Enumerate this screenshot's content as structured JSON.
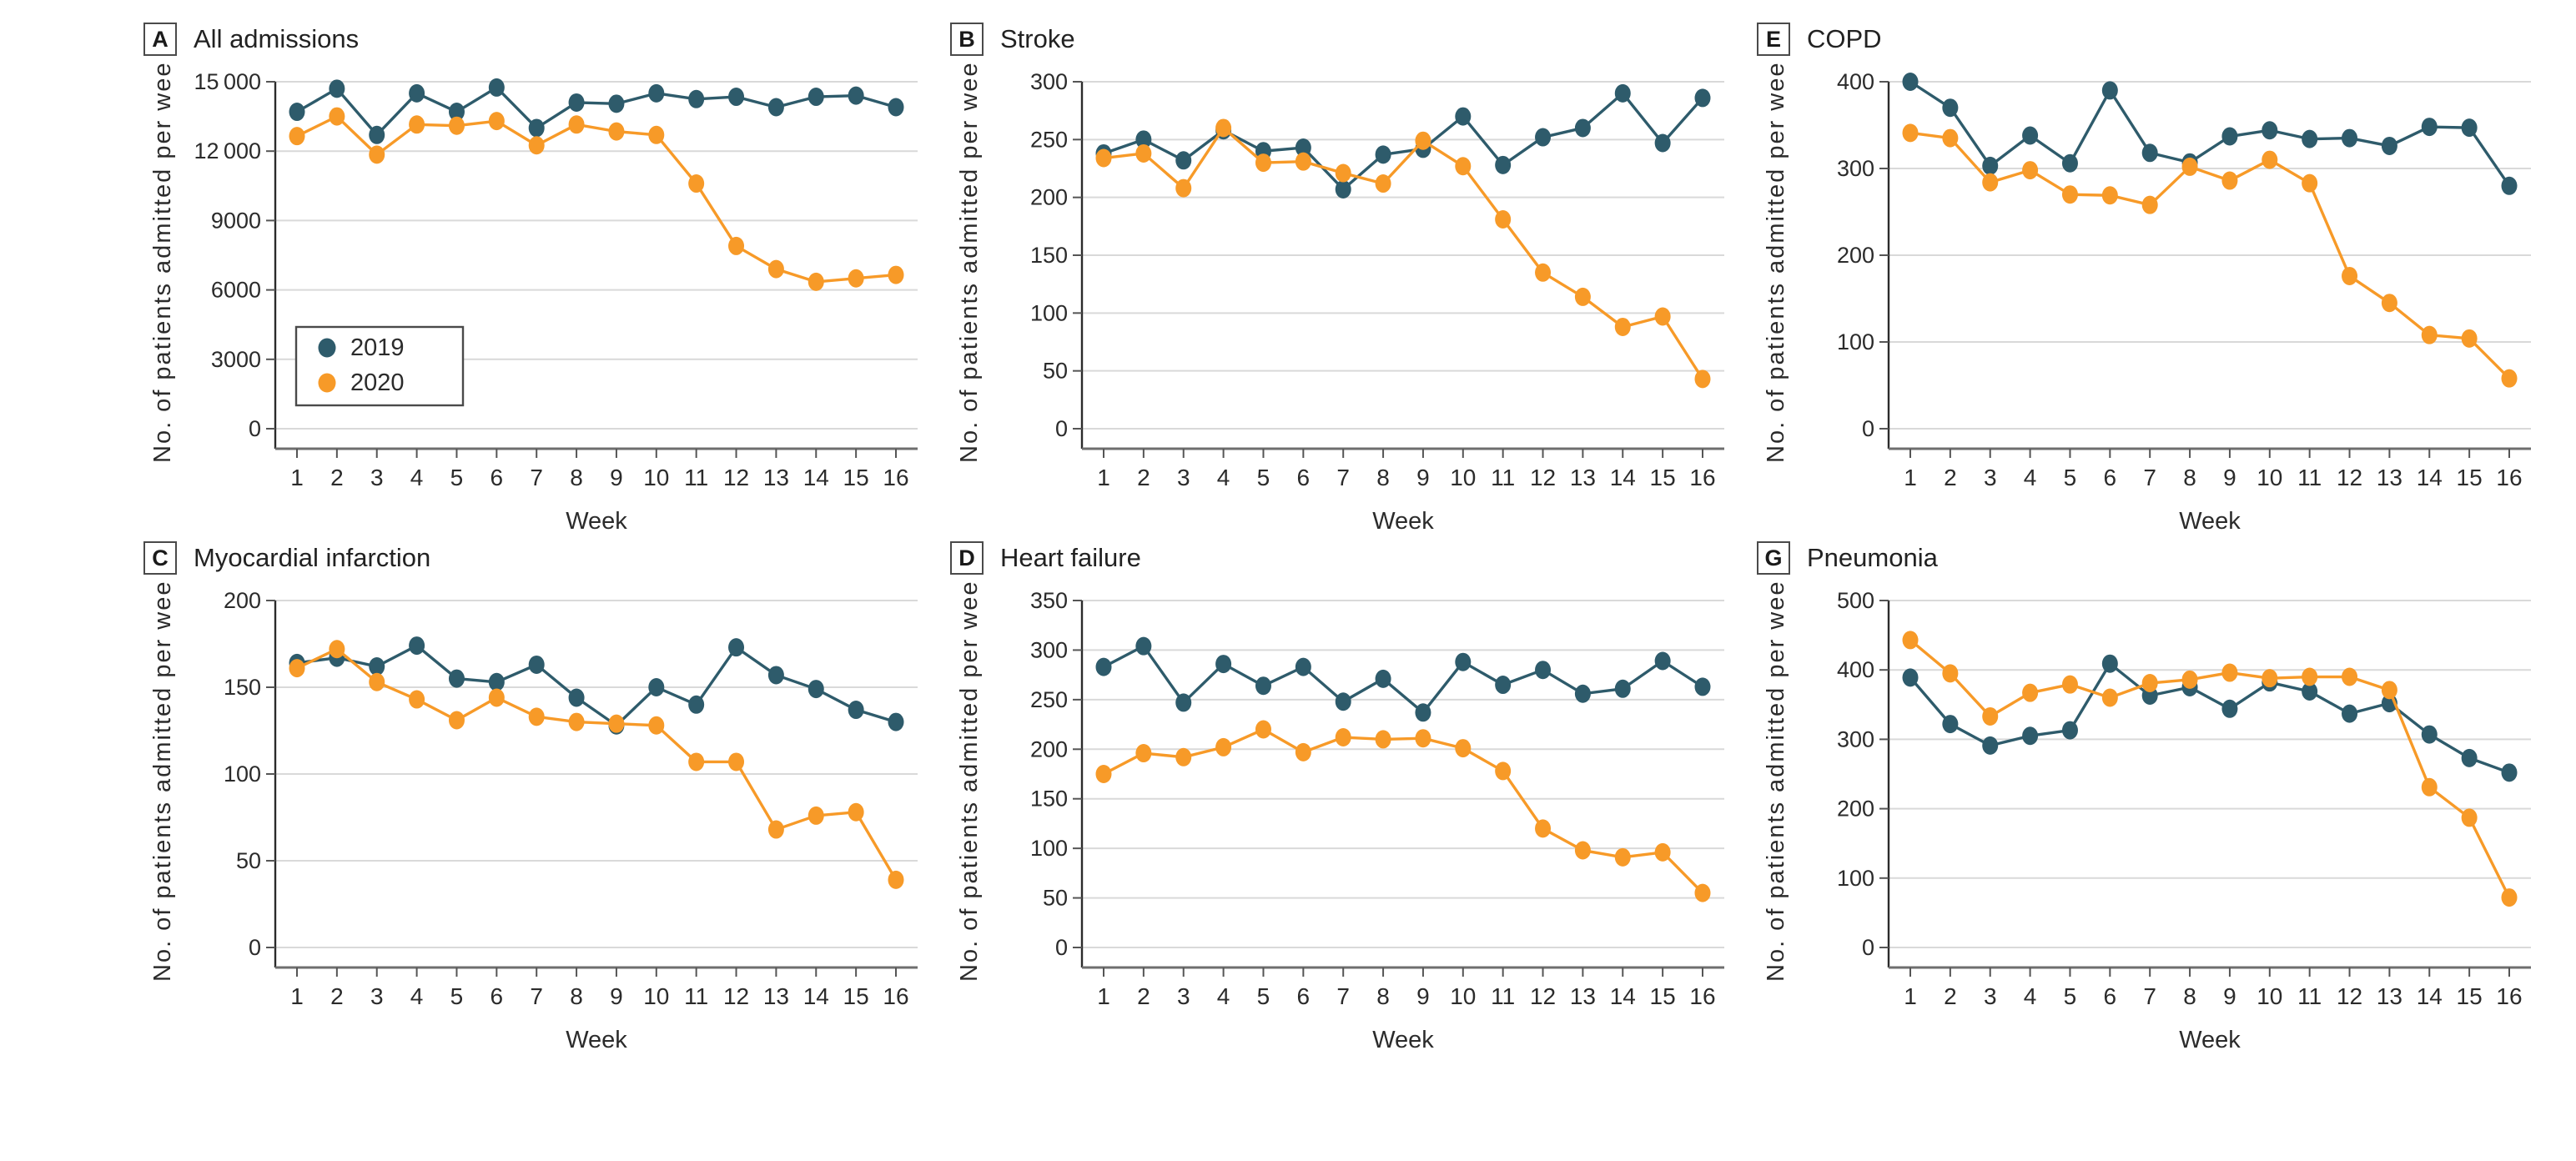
{
  "figure": {
    "x_label": "Week",
    "y_label": "No. of patients admitted per week",
    "week_labels": [
      "1",
      "2",
      "3",
      "4",
      "5",
      "6",
      "7",
      "8",
      "9",
      "10",
      "11",
      "12",
      "13",
      "14",
      "15",
      "16"
    ]
  },
  "colors": {
    "series_2019": "#2E5B6B",
    "series_2020": "#F79A28",
    "grid": "#D9D9D9",
    "y_spine": "#2b2b2b",
    "x_spine": "#6e6e6e",
    "tick": "#555555",
    "legend_border": "#4a4a4a",
    "text": "#2b2b2b"
  },
  "legend": {
    "items": [
      {
        "label": "2019",
        "color_key": "series_2019"
      },
      {
        "label": "2020",
        "color_key": "series_2020"
      }
    ]
  },
  "chart_data": [
    {
      "panel": "A",
      "title": "All admissions",
      "type": "line",
      "xlabel": "Week",
      "ylabel": "No. of patients admitted per week",
      "x": [
        1,
        2,
        3,
        4,
        5,
        6,
        7,
        8,
        9,
        10,
        11,
        12,
        13,
        14,
        15,
        16
      ],
      "ylim": [
        0,
        15000
      ],
      "yticks": [
        0,
        3000,
        6000,
        9000,
        12000,
        15000
      ],
      "ytick_labels": [
        "0",
        "3000",
        "6000",
        "9000",
        "12 000",
        "15 000"
      ],
      "grid": true,
      "legend": true,
      "series": [
        {
          "name": "2019",
          "values": [
            13700,
            14700,
            12700,
            14500,
            13700,
            14750,
            13000,
            14100,
            14050,
            14500,
            14250,
            14350,
            13900,
            14350,
            14400,
            13900
          ]
        },
        {
          "name": "2020",
          "values": [
            12650,
            13500,
            11850,
            13150,
            13100,
            13300,
            12250,
            13150,
            12850,
            12700,
            10600,
            7900,
            6900,
            6350,
            6500,
            6650
          ]
        }
      ]
    },
    {
      "panel": "B",
      "title": "Stroke",
      "type": "line",
      "xlabel": "Week",
      "ylabel": "No. of patients admitted per week",
      "x": [
        1,
        2,
        3,
        4,
        5,
        6,
        7,
        8,
        9,
        10,
        11,
        12,
        13,
        14,
        15,
        16
      ],
      "ylim": [
        0,
        300
      ],
      "yticks": [
        0,
        50,
        100,
        150,
        200,
        250,
        300
      ],
      "ytick_labels": [
        "0",
        "50",
        "100",
        "150",
        "200",
        "250",
        "300"
      ],
      "grid": true,
      "legend": false,
      "series": [
        {
          "name": "2019",
          "values": [
            238,
            250,
            232,
            258,
            240,
            243,
            207,
            237,
            242,
            270,
            228,
            252,
            260,
            290,
            247,
            286
          ]
        },
        {
          "name": "2020",
          "values": [
            234,
            238,
            208,
            260,
            230,
            231,
            221,
            212,
            249,
            227,
            181,
            135,
            114,
            88,
            97,
            43
          ]
        }
      ]
    },
    {
      "panel": "E",
      "title": "COPD",
      "type": "line",
      "xlabel": "Week",
      "ylabel": "No. of patients admitted per week",
      "x": [
        1,
        2,
        3,
        4,
        5,
        6,
        7,
        8,
        9,
        10,
        11,
        12,
        13,
        14,
        15,
        16
      ],
      "ylim": [
        0,
        400
      ],
      "yticks": [
        0,
        100,
        200,
        300,
        400
      ],
      "ytick_labels": [
        "0",
        "100",
        "200",
        "300",
        "400"
      ],
      "grid": true,
      "legend": false,
      "series": [
        {
          "name": "2019",
          "values": [
            400,
            370,
            303,
            338,
            306,
            390,
            318,
            307,
            337,
            344,
            334,
            335,
            326,
            348,
            347,
            280
          ]
        },
        {
          "name": "2020",
          "values": [
            341,
            335,
            284,
            298,
            270,
            269,
            258,
            302,
            286,
            310,
            283,
            176,
            145,
            108,
            104,
            58
          ]
        }
      ]
    },
    {
      "panel": "C",
      "title": "Myocardial infarction",
      "type": "line",
      "xlabel": "Week",
      "ylabel": "No. of patients admitted per week",
      "x": [
        1,
        2,
        3,
        4,
        5,
        6,
        7,
        8,
        9,
        10,
        11,
        12,
        13,
        14,
        15,
        16
      ],
      "ylim": [
        0,
        200
      ],
      "yticks": [
        0,
        50,
        100,
        150,
        200
      ],
      "ytick_labels": [
        "0",
        "50",
        "100",
        "150",
        "200"
      ],
      "grid": true,
      "legend": false,
      "series": [
        {
          "name": "2019",
          "values": [
            164,
            167,
            162,
            174,
            155,
            153,
            163,
            144,
            128,
            150,
            140,
            173,
            157,
            149,
            137,
            130
          ]
        },
        {
          "name": "2020",
          "values": [
            161,
            172,
            153,
            143,
            131,
            144,
            133,
            130,
            129,
            128,
            107,
            107,
            68,
            76,
            78,
            39
          ]
        }
      ]
    },
    {
      "panel": "D",
      "title": "Heart failure",
      "type": "line",
      "xlabel": "Week",
      "ylabel": "No. of patients admitted per week",
      "x": [
        1,
        2,
        3,
        4,
        5,
        6,
        7,
        8,
        9,
        10,
        11,
        12,
        13,
        14,
        15,
        16
      ],
      "ylim": [
        0,
        350
      ],
      "yticks": [
        0,
        50,
        100,
        150,
        200,
        250,
        300,
        350
      ],
      "ytick_labels": [
        "0",
        "50",
        "100",
        "150",
        "200",
        "250",
        "300",
        "350"
      ],
      "grid": true,
      "legend": false,
      "series": [
        {
          "name": "2019",
          "values": [
            283,
            304,
            247,
            286,
            264,
            283,
            248,
            271,
            237,
            288,
            265,
            280,
            256,
            261,
            289,
            263
          ]
        },
        {
          "name": "2020",
          "values": [
            175,
            196,
            192,
            202,
            220,
            197,
            212,
            210,
            211,
            201,
            178,
            120,
            98,
            91,
            96,
            55
          ]
        }
      ]
    },
    {
      "panel": "G",
      "title": "Pneumonia",
      "type": "line",
      "xlabel": "Week",
      "ylabel": "No. of patients admitted per week",
      "x": [
        1,
        2,
        3,
        4,
        5,
        6,
        7,
        8,
        9,
        10,
        11,
        12,
        13,
        14,
        15,
        16
      ],
      "ylim": [
        0,
        500
      ],
      "yticks": [
        0,
        100,
        200,
        300,
        400,
        500
      ],
      "ytick_labels": [
        "0",
        "100",
        "200",
        "300",
        "400",
        "500"
      ],
      "grid": true,
      "legend": false,
      "series": [
        {
          "name": "2019",
          "values": [
            389,
            322,
            291,
            305,
            313,
            409,
            363,
            375,
            344,
            382,
            369,
            337,
            352,
            307,
            273,
            252
          ]
        },
        {
          "name": "2020",
          "values": [
            443,
            395,
            333,
            367,
            379,
            360,
            381,
            386,
            396,
            388,
            390,
            390,
            371,
            231,
            187,
            72
          ]
        }
      ]
    }
  ]
}
